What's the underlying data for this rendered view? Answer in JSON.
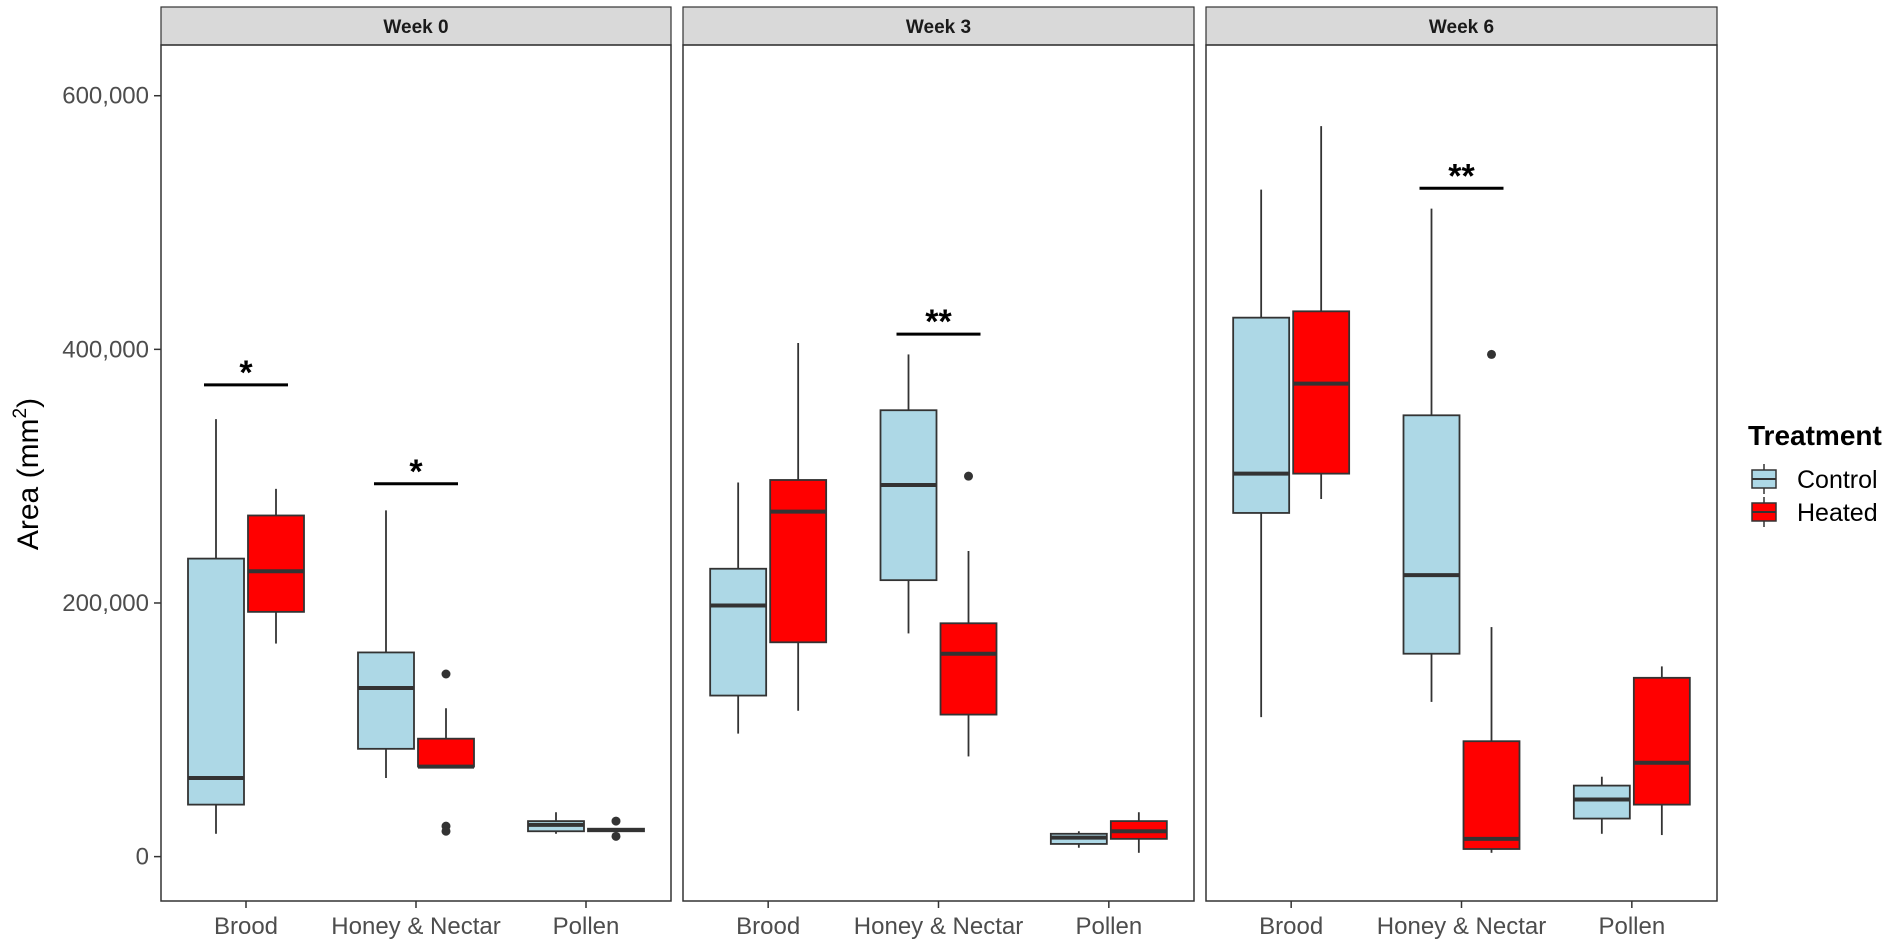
{
  "chart_data": {
    "type": "boxplot",
    "ylabel": "Area (mm",
    "ylabel_sup": "2",
    "ylabel_close": ")",
    "ylim": [
      -35000,
      640000
    ],
    "y_ticks": [
      0,
      200000,
      400000,
      600000
    ],
    "y_tick_labels": [
      "0",
      "200,000",
      "400,000",
      "600,000"
    ],
    "categories": [
      "Brood",
      "Honey & Nectar",
      "Pollen"
    ],
    "legend": {
      "title": "Treatment",
      "entries": [
        {
          "name": "Control",
          "color": "#add8e6"
        },
        {
          "name": "Heated",
          "color": "#ff0000"
        }
      ]
    },
    "panels": [
      {
        "title": "Week 0",
        "boxes": [
          {
            "category": "Brood",
            "group": "Control",
            "min": 18000,
            "q1": 41000,
            "median": 62000,
            "q3": 235000,
            "max": 345000,
            "outliers": []
          },
          {
            "category": "Brood",
            "group": "Heated",
            "min": 168000,
            "q1": 193000,
            "median": 225000,
            "q3": 269000,
            "max": 290000,
            "outliers": []
          },
          {
            "category": "Honey & Nectar",
            "group": "Control",
            "min": 62000,
            "q1": 85000,
            "median": 133000,
            "q3": 161000,
            "max": 273000,
            "outliers": []
          },
          {
            "category": "Honey & Nectar",
            "group": "Heated",
            "min": 71000,
            "q1": 71000,
            "median": 71000,
            "q3": 93000,
            "max": 117000,
            "outliers": [
              144000,
              24000,
              20000
            ]
          },
          {
            "category": "Pollen",
            "group": "Control",
            "min": 18000,
            "q1": 20000,
            "median": 25000,
            "q3": 28000,
            "max": 35000,
            "outliers": []
          },
          {
            "category": "Pollen",
            "group": "Heated",
            "min": 20000,
            "q1": 20000,
            "median": 21000,
            "q3": 22000,
            "max": 22000,
            "outliers": [
              28000,
              16000
            ]
          }
        ],
        "significance": [
          {
            "category": "Brood",
            "label": "*",
            "y": 372000
          },
          {
            "category": "Honey & Nectar",
            "label": "*",
            "y": 294000
          }
        ]
      },
      {
        "title": "Week 3",
        "boxes": [
          {
            "category": "Brood",
            "group": "Control",
            "min": 97000,
            "q1": 127000,
            "median": 198000,
            "q3": 227000,
            "max": 295000,
            "outliers": []
          },
          {
            "category": "Brood",
            "group": "Heated",
            "min": 115000,
            "q1": 169000,
            "median": 272000,
            "q3": 297000,
            "max": 405000,
            "outliers": []
          },
          {
            "category": "Honey & Nectar",
            "group": "Control",
            "min": 176000,
            "q1": 218000,
            "median": 293000,
            "q3": 352000,
            "max": 396000,
            "outliers": []
          },
          {
            "category": "Honey & Nectar",
            "group": "Heated",
            "min": 79000,
            "q1": 112000,
            "median": 160000,
            "q3": 184000,
            "max": 241000,
            "outliers": [
              300000
            ]
          },
          {
            "category": "Pollen",
            "group": "Control",
            "min": 7000,
            "q1": 10000,
            "median": 15000,
            "q3": 18000,
            "max": 20000,
            "outliers": []
          },
          {
            "category": "Pollen",
            "group": "Heated",
            "min": 3000,
            "q1": 14000,
            "median": 20000,
            "q3": 28000,
            "max": 35000,
            "outliers": []
          }
        ],
        "significance": [
          {
            "category": "Honey & Nectar",
            "label": "**",
            "y": 412000
          }
        ]
      },
      {
        "title": "Week 6",
        "boxes": [
          {
            "category": "Brood",
            "group": "Control",
            "min": 110000,
            "q1": 271000,
            "median": 302000,
            "q3": 425000,
            "max": 526000,
            "outliers": []
          },
          {
            "category": "Brood",
            "group": "Heated",
            "min": 282000,
            "q1": 302000,
            "median": 373000,
            "q3": 430000,
            "max": 576000,
            "outliers": []
          },
          {
            "category": "Honey & Nectar",
            "group": "Control",
            "min": 122000,
            "q1": 160000,
            "median": 222000,
            "q3": 348000,
            "max": 511000,
            "outliers": []
          },
          {
            "category": "Honey & Nectar",
            "group": "Heated",
            "min": 3000,
            "q1": 6000,
            "median": 14000,
            "q3": 91000,
            "max": 181000,
            "outliers": [
              396000
            ]
          },
          {
            "category": "Pollen",
            "group": "Control",
            "min": 18000,
            "q1": 30000,
            "median": 45000,
            "q3": 56000,
            "max": 63000,
            "outliers": []
          },
          {
            "category": "Pollen",
            "group": "Heated",
            "min": 17000,
            "q1": 41000,
            "median": 74000,
            "q3": 141000,
            "max": 150000,
            "outliers": []
          }
        ],
        "significance": [
          {
            "category": "Honey & Nectar",
            "label": "**",
            "y": 527000
          }
        ]
      }
    ]
  }
}
